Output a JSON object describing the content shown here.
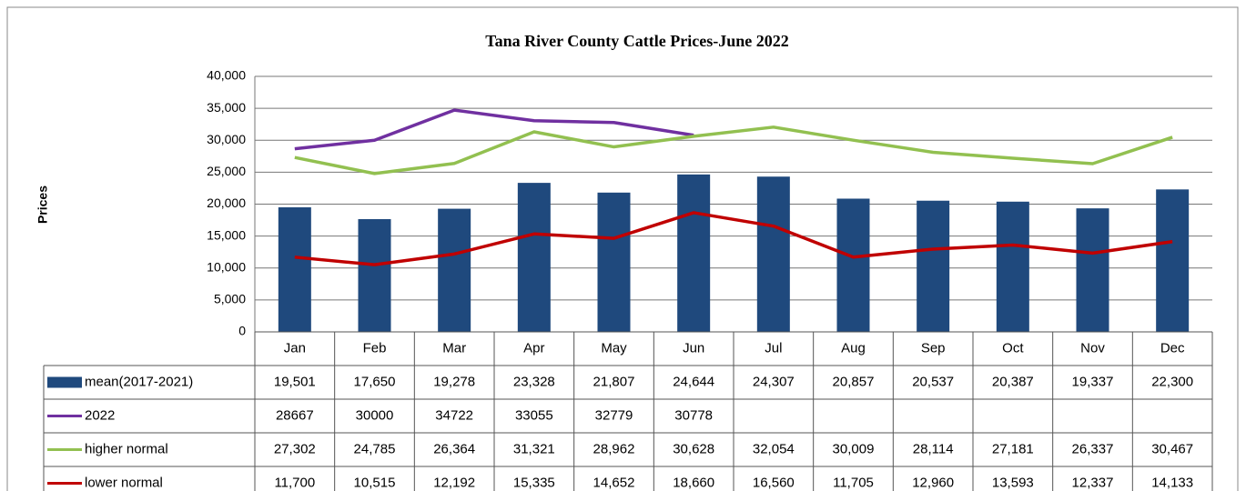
{
  "chart_data": {
    "type": "combo",
    "title": "Tana River County Cattle Prices-June 2022",
    "y_label": "Prices",
    "categories": [
      "Jan",
      "Feb",
      "Mar",
      "Apr",
      "May",
      "Jun",
      "Jul",
      "Aug",
      "Sep",
      "Oct",
      "Nov",
      "Dec"
    ],
    "ylim": [
      0,
      40000
    ],
    "yticks": [
      0,
      {
        "value": 5000,
        "label": "5,000"
      },
      {
        "value": 10000,
        "label": "10,000"
      },
      {
        "value": 15000,
        "label": "15,000"
      },
      {
        "value": 20000,
        "label": "20,000"
      },
      {
        "value": 25000,
        "label": "25,000"
      },
      {
        "value": 30000,
        "label": "30,000"
      },
      {
        "value": 35000,
        "label": "35,000"
      },
      {
        "value": 40000,
        "label": "40,000"
      }
    ],
    "grid": true,
    "series": [
      {
        "name": "mean(2017-2021)",
        "type": "bar",
        "color": "#1f497d",
        "values": [
          19501,
          17650,
          19278,
          23328,
          21807,
          24644,
          24307,
          20857,
          20537,
          20387,
          19337,
          22300
        ],
        "value_labels": [
          "19,501",
          "17,650",
          "19,278",
          "23,328",
          "21,807",
          "24,644",
          "24,307",
          "20,857",
          "20,537",
          "20,387",
          "19,337",
          "22,300"
        ]
      },
      {
        "name": "2022",
        "type": "line",
        "color": "#7030a0",
        "values": [
          28667,
          30000,
          34722,
          33055,
          32779,
          30778,
          null,
          null,
          null,
          null,
          null,
          null
        ]
      },
      {
        "name": "higher normal",
        "type": "line",
        "color": "#92c050",
        "values": [
          27302,
          24785,
          26364,
          31321,
          28962,
          30628,
          32054,
          30009,
          28114,
          27181,
          26337,
          30467
        ],
        "value_labels": [
          "27,302",
          "24,785",
          "26,364",
          "31,321",
          "28,962",
          "30,628",
          "32,054",
          "30,009",
          "28,114",
          "27,181",
          "26,337",
          "30,467"
        ]
      },
      {
        "name": "lower normal",
        "type": "line",
        "color": "#c00000",
        "values": [
          11700,
          10515,
          12192,
          15335,
          14652,
          18660,
          16560,
          11705,
          12960,
          13593,
          12337,
          14133
        ],
        "value_labels": [
          "11,700",
          "10,515",
          "12,192",
          "15,335",
          "14,652",
          "18,660",
          "16,560",
          "11,705",
          "12,960",
          "13,593",
          "12,337",
          "14,133"
        ]
      }
    ]
  }
}
